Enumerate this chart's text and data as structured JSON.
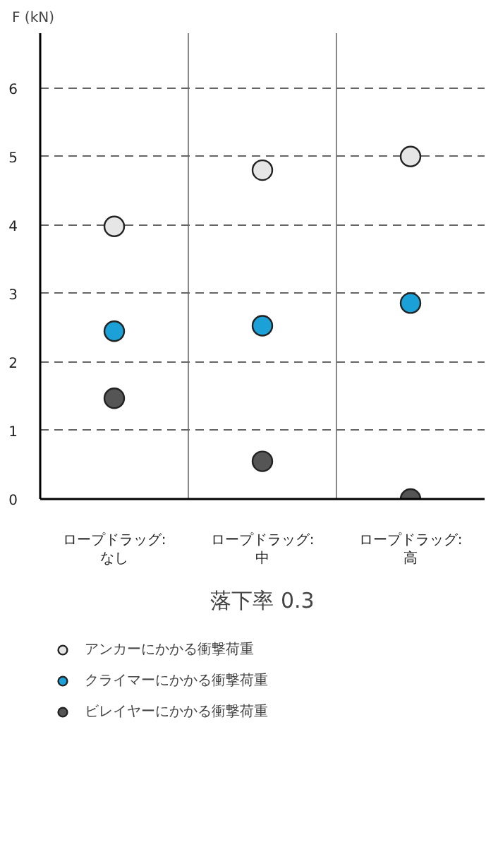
{
  "chart_data": {
    "type": "scatter",
    "title": "落下率 0.3",
    "ylabel": "F (kN)",
    "categories": [
      "ロープドラッグ:\nなし",
      "ロープドラッグ:\n中",
      "ロープドラッグ:\n高"
    ],
    "series": [
      {
        "name": "アンカーにかかる衝撃荷重",
        "color": "#e6e6e6",
        "values": [
          3.98,
          4.8,
          5.0
        ]
      },
      {
        "name": "クライマーにかかる衝撃荷重",
        "color": "#1ba1d8",
        "values": [
          2.45,
          2.53,
          2.86
        ]
      },
      {
        "name": "ビレイヤーにかかる衝撃荷重",
        "color": "#555555",
        "values": [
          1.47,
          0.55,
          0.0
        ]
      }
    ],
    "ylim": [
      0,
      6.8
    ],
    "yticks": [
      0,
      1,
      2,
      3,
      4,
      5,
      6
    ],
    "grid": true,
    "legend": "bottom",
    "marker": "circle"
  }
}
